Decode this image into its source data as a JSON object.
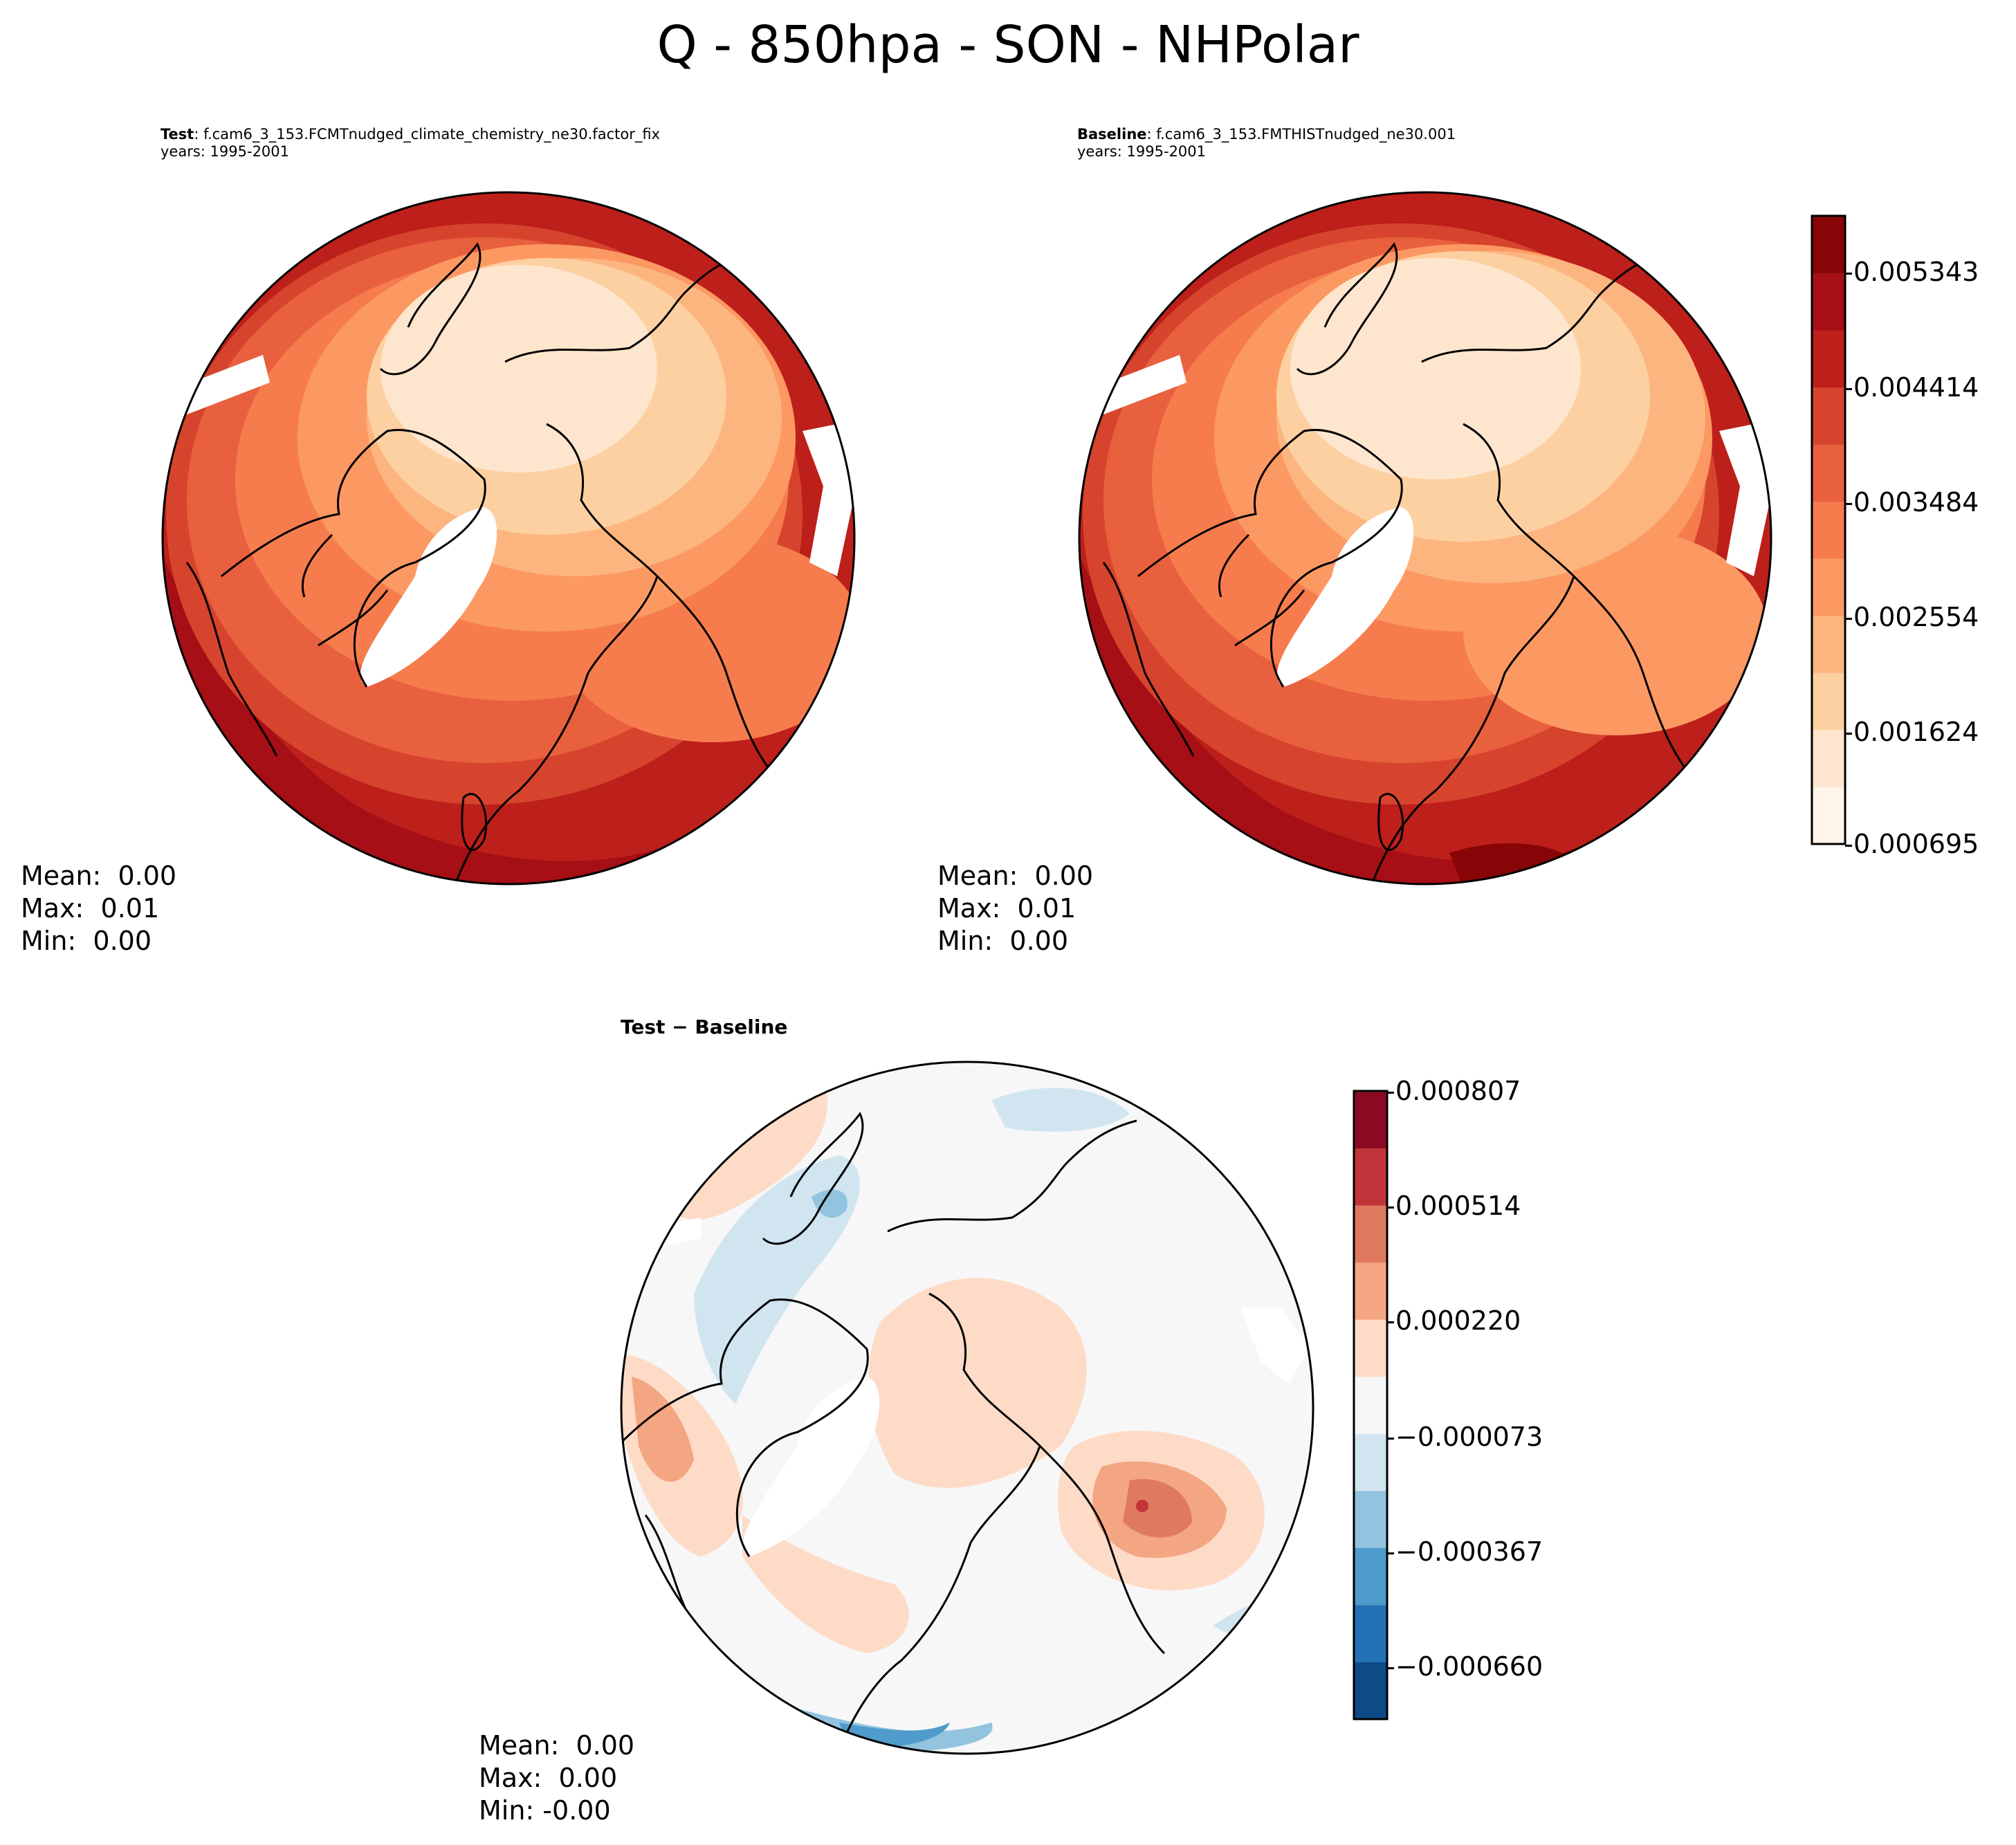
{
  "title": "Q - 850hpa - SON - NHPolar",
  "panels": [
    {
      "id": "test",
      "label_bold": "Test",
      "label_rest": ": f.cam6_3_153.FCMTnudged_climate_chemistry_ne30.factor_fix",
      "years": "years: 1995-2001",
      "stats": {
        "mean": "Mean:  0.00",
        "max": "Max:  0.01",
        "min": "Min:  0.00"
      }
    },
    {
      "id": "baseline",
      "label_bold": "Baseline",
      "label_rest": ": f.cam6_3_153.FMTHISTnudged_ne30.001",
      "years": "years: 1995-2001",
      "stats": {
        "mean": "Mean:  0.00",
        "max": "Max:  0.01",
        "min": "Min:  0.00"
      }
    },
    {
      "id": "diff",
      "label_bold": "Test − Baseline",
      "stats": {
        "mean": "Mean:  0.00",
        "max": "Max:  0.00",
        "min": "Min: -0.00"
      }
    }
  ],
  "colorbar_main": {
    "ticks": [
      "0.005343",
      "0.004414",
      "0.003484",
      "0.002554",
      "0.001624",
      "0.000695"
    ],
    "colors": [
      "#fff5eb",
      "#fee6ce",
      "#fdd0a2",
      "#fdb57f",
      "#fc9963",
      "#f67c4e",
      "#e8603e",
      "#d6442e",
      "#bd1f1a",
      "#a50f15",
      "#870506"
    ]
  },
  "colorbar_diff": {
    "ticks": [
      "0.000807",
      "0.000514",
      "0.000220",
      "−0.000073",
      "−0.000367",
      "−0.000660"
    ],
    "colors": [
      "#0d4a87",
      "#2471b5",
      "#4f9bcb",
      "#92c4df",
      "#d1e5f0",
      "#f7f7f7",
      "#fddbc7",
      "#f4a582",
      "#e07a5f",
      "#c0343a",
      "#8b0b25"
    ]
  }
}
